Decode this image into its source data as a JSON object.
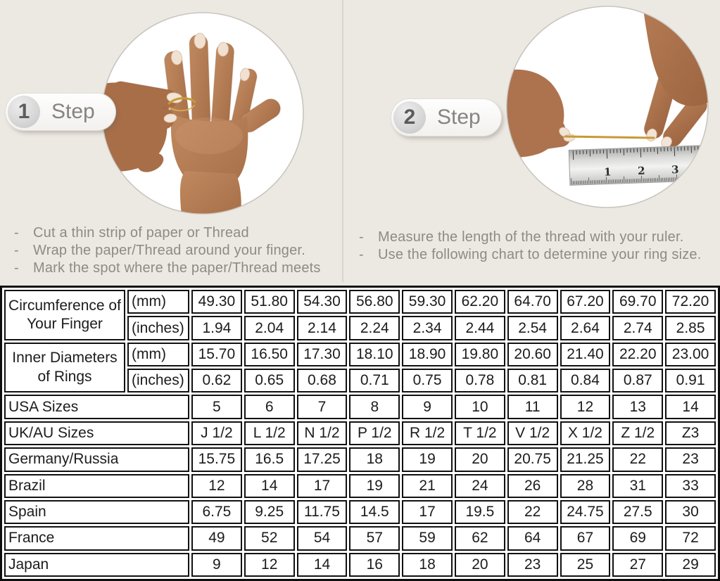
{
  "page": {
    "bullet_char": "-",
    "background_color": "#ece8e2",
    "table_border_color": "#0e0e0e",
    "shaded_cell_color": "#d8d8d8",
    "gold_thread_color": "#c79a36"
  },
  "steps": [
    {
      "number": "1",
      "label": "Step",
      "photo": "hand-with-thread-photo",
      "instructions": [
        "Cut a thin strip of paper or Thread",
        "Wrap the paper/Thread around your finger.",
        "Mark the spot where the paper/Thread meets"
      ]
    },
    {
      "number": "2",
      "label": "Step",
      "photo": "measuring-thread-with-ruler-photo",
      "ruler_numbers": [
        "1",
        "2",
        "3"
      ],
      "instructions": [
        "Measure the length of the thread with your ruler.",
        "Use the following chart to determine your ring size."
      ]
    }
  ],
  "size_chart": {
    "measurement_groups": [
      {
        "label": "Circumference of Your Finger",
        "rows": [
          {
            "unit": "(mm)",
            "shaded": true,
            "values": [
              "49.30",
              "51.80",
              "54.30",
              "56.80",
              "59.30",
              "62.20",
              "64.70",
              "67.20",
              "69.70",
              "72.20"
            ]
          },
          {
            "unit": "(inches)",
            "shaded": false,
            "values": [
              "1.94",
              "2.04",
              "2.14",
              "2.24",
              "2.34",
              "2.44",
              "2.54",
              "2.64",
              "2.74",
              "2.85"
            ]
          }
        ]
      },
      {
        "label": "Inner Diameters of Rings",
        "rows": [
          {
            "unit": "(mm)",
            "shaded": false,
            "values": [
              "15.70",
              "16.50",
              "17.30",
              "18.10",
              "18.90",
              "19.80",
              "20.60",
              "21.40",
              "22.20",
              "23.00"
            ]
          },
          {
            "unit": "(inches)",
            "shaded": false,
            "values": [
              "0.62",
              "0.65",
              "0.68",
              "0.71",
              "0.75",
              "0.78",
              "0.81",
              "0.84",
              "0.87",
              "0.91"
            ]
          }
        ]
      }
    ],
    "size_rows": [
      {
        "label": "USA Sizes",
        "shaded": true,
        "values": [
          "5",
          "6",
          "7",
          "8",
          "9",
          "10",
          "11",
          "12",
          "13",
          "14"
        ]
      },
      {
        "label": "UK/AU Sizes",
        "shaded": false,
        "values": [
          "J 1/2",
          "L 1/2",
          "N 1/2",
          "P 1/2",
          "R 1/2",
          "T 1/2",
          "V 1/2",
          "X 1/2",
          "Z 1/2",
          "Z3"
        ]
      },
      {
        "label": "Germany/Russia",
        "shaded": false,
        "values": [
          "15.75",
          "16.5",
          "17.25",
          "18",
          "19",
          "20",
          "20.75",
          "21.25",
          "22",
          "23"
        ]
      },
      {
        "label": "Brazil",
        "shaded": false,
        "values": [
          "12",
          "14",
          "17",
          "19",
          "21",
          "24",
          "26",
          "28",
          "31",
          "33"
        ]
      },
      {
        "label": "Spain",
        "shaded": false,
        "values": [
          "6.75",
          "9.25",
          "11.75",
          "14.5",
          "17",
          "19.5",
          "22",
          "24.75",
          "27.5",
          "30"
        ]
      },
      {
        "label": "France",
        "shaded": false,
        "values": [
          "49",
          "52",
          "54",
          "57",
          "59",
          "62",
          "64",
          "67",
          "69",
          "72"
        ]
      },
      {
        "label": "Japan",
        "shaded": false,
        "values": [
          "9",
          "12",
          "14",
          "16",
          "18",
          "20",
          "23",
          "25",
          "27",
          "29"
        ]
      }
    ]
  }
}
